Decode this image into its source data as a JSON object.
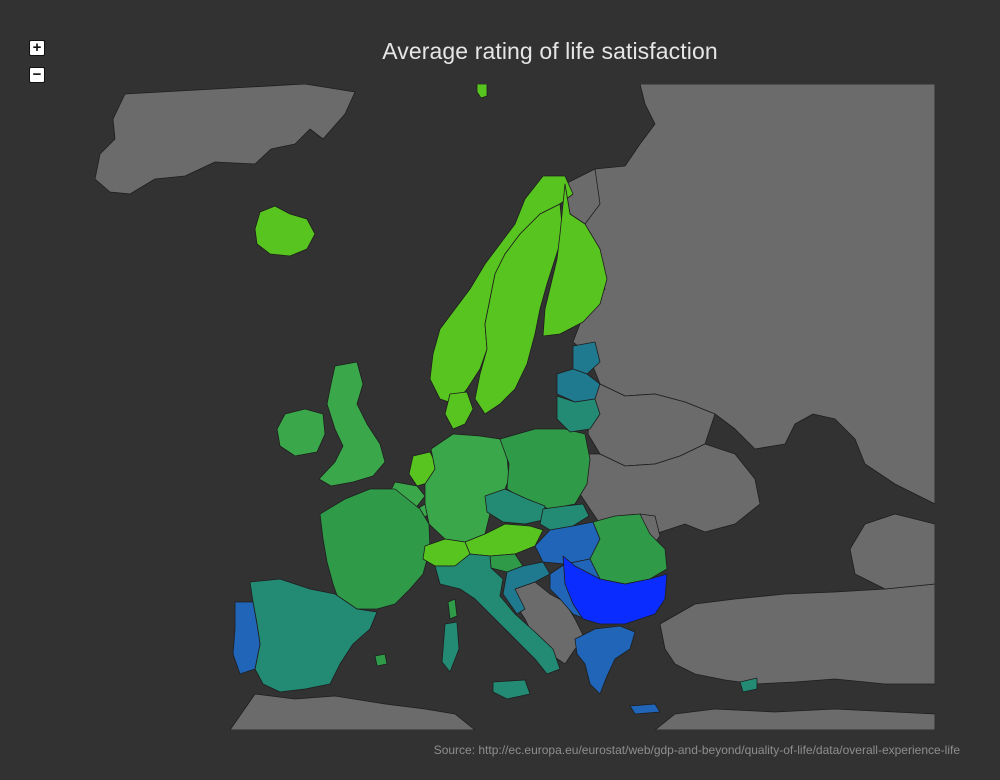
{
  "title": "Average rating of life satisfaction",
  "source": "Source: http://ec.europa.eu/eurostat/web/gdp-and-beyond/quality-of-life/data/overall-experience-life",
  "controls": {
    "zoom_in_label": "+",
    "zoom_out_label": "−"
  },
  "colors": {
    "background": "#323232",
    "no_data": "#6b6b6b",
    "very_high": "#58c41f",
    "high": "#2f9a48",
    "medium": "#238a74",
    "medium_low": "#1f7a8f",
    "low": "#2065b8",
    "lowest": "#0a2cff"
  },
  "countries": [
    {
      "name": "Iceland",
      "color": "#58c41f"
    },
    {
      "name": "Norway",
      "color": "#58c41f"
    },
    {
      "name": "Sweden",
      "color": "#58c41f"
    },
    {
      "name": "Finland",
      "color": "#58c41f"
    },
    {
      "name": "Denmark",
      "color": "#58c41f"
    },
    {
      "name": "Netherlands",
      "color": "#58c41f"
    },
    {
      "name": "Austria",
      "color": "#58c41f"
    },
    {
      "name": "Switzerland",
      "color": "#58c41f"
    },
    {
      "name": "Ireland",
      "color": "#3aa84a"
    },
    {
      "name": "United Kingdom",
      "color": "#3aa84a"
    },
    {
      "name": "Belgium",
      "color": "#3aa84a"
    },
    {
      "name": "Luxembourg",
      "color": "#3aa84a"
    },
    {
      "name": "Germany",
      "color": "#3aa84a"
    },
    {
      "name": "Poland",
      "color": "#2f9a48"
    },
    {
      "name": "France",
      "color": "#2f9a48"
    },
    {
      "name": "Romania",
      "color": "#2f9a48"
    },
    {
      "name": "Slovenia",
      "color": "#2f9a48"
    },
    {
      "name": "Malta",
      "color": "#2f9a48"
    },
    {
      "name": "Spain",
      "color": "#238a74"
    },
    {
      "name": "Czech Republic",
      "color": "#238a74"
    },
    {
      "name": "Slovakia",
      "color": "#238a74"
    },
    {
      "name": "Italy",
      "color": "#238a74"
    },
    {
      "name": "Lithuania",
      "color": "#238a74"
    },
    {
      "name": "Cyprus",
      "color": "#238a74"
    },
    {
      "name": "Estonia",
      "color": "#1f7a8f"
    },
    {
      "name": "Latvia",
      "color": "#1f7a8f"
    },
    {
      "name": "Croatia",
      "color": "#1f7a8f"
    },
    {
      "name": "Portugal",
      "color": "#2065b8"
    },
    {
      "name": "Hungary",
      "color": "#2065b8"
    },
    {
      "name": "Greece",
      "color": "#2065b8"
    },
    {
      "name": "Serbia",
      "color": "#2065b8"
    },
    {
      "name": "Bulgaria",
      "color": "#0a2cff"
    }
  ]
}
